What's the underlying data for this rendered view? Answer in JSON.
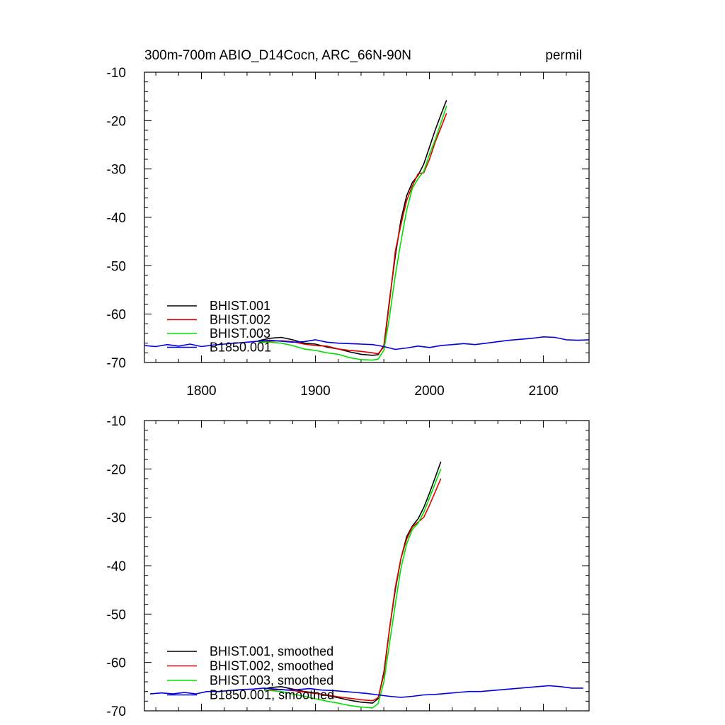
{
  "title_left": "300m-700m ABIO_D14Cocn, ARC_66N-90N",
  "title_right": "permil",
  "colors": {
    "BHIST.001": "#000000",
    "BHIST.002": "#e00000",
    "BHIST.003": "#00e000",
    "B1850.001": "#0000e0"
  },
  "chart_data": [
    {
      "type": "line",
      "xlim": [
        1750,
        2140
      ],
      "ylim": [
        -70,
        -10
      ],
      "x_ticks": [
        1800,
        1900,
        2000,
        2100
      ],
      "x_tick_labels": [
        "1800",
        "1900",
        "2000",
        "2100"
      ],
      "y_ticks": [
        -10,
        -20,
        -30,
        -40,
        -50,
        -60,
        -70
      ],
      "y_tick_labels": [
        "-10",
        "-20",
        "-30",
        "-40",
        "-50",
        "-60",
        "-70"
      ],
      "legend_position": "bottom-left",
      "series": [
        {
          "name": "BHIST.001",
          "x": [
            1850,
            1860,
            1870,
            1880,
            1890,
            1900,
            1910,
            1920,
            1930,
            1940,
            1950,
            1955,
            1960,
            1965,
            1970,
            1975,
            1980,
            1985,
            1990,
            1995,
            2000,
            2005,
            2010,
            2015
          ],
          "y": [
            -65.5,
            -65.0,
            -64.8,
            -65.3,
            -66.0,
            -66.2,
            -66.8,
            -67.2,
            -67.8,
            -68.3,
            -68.5,
            -68.4,
            -66.5,
            -57.0,
            -48.0,
            -40.5,
            -35.5,
            -32.8,
            -31.3,
            -29.0,
            -25.5,
            -22.0,
            -18.8,
            -15.8
          ]
        },
        {
          "name": "BHIST.002",
          "x": [
            1850,
            1860,
            1870,
            1880,
            1890,
            1900,
            1910,
            1920,
            1930,
            1940,
            1950,
            1955,
            1960,
            1965,
            1970,
            1975,
            1980,
            1985,
            1990,
            1995,
            2000,
            2005,
            2010,
            2015
          ],
          "y": [
            -65.8,
            -65.6,
            -65.5,
            -65.7,
            -66.2,
            -66.5,
            -66.6,
            -67.2,
            -67.5,
            -67.7,
            -68.0,
            -68.2,
            -66.8,
            -57.5,
            -47.0,
            -41.5,
            -36.5,
            -33.5,
            -31.0,
            -30.8,
            -28.0,
            -24.5,
            -21.5,
            -18.5
          ]
        },
        {
          "name": "BHIST.003",
          "x": [
            1850,
            1860,
            1870,
            1880,
            1890,
            1900,
            1910,
            1920,
            1930,
            1940,
            1950,
            1955,
            1960,
            1965,
            1970,
            1975,
            1980,
            1985,
            1990,
            1995,
            2000,
            2005,
            2010,
            2015
          ],
          "y": [
            -65.8,
            -65.8,
            -66.0,
            -66.5,
            -67.2,
            -67.5,
            -68.0,
            -68.3,
            -69.0,
            -69.4,
            -69.5,
            -69.3,
            -67.5,
            -60.5,
            -52.0,
            -45.0,
            -38.5,
            -34.0,
            -32.0,
            -30.5,
            -27.0,
            -24.0,
            -20.5,
            -17.0
          ]
        },
        {
          "name": "B1850.001",
          "x": [
            1750,
            1760,
            1770,
            1780,
            1790,
            1800,
            1810,
            1820,
            1830,
            1840,
            1850,
            1860,
            1870,
            1880,
            1890,
            1900,
            1910,
            1920,
            1930,
            1940,
            1950,
            1960,
            1970,
            1980,
            1990,
            2000,
            2010,
            2020,
            2030,
            2040,
            2050,
            2060,
            2070,
            2080,
            2090,
            2100,
            2110,
            2120,
            2130,
            2140
          ],
          "y": [
            -66.5,
            -66.7,
            -66.3,
            -66.6,
            -66.2,
            -66.7,
            -66.4,
            -66.2,
            -66.0,
            -65.8,
            -65.6,
            -65.4,
            -65.6,
            -65.8,
            -65.7,
            -65.3,
            -65.8,
            -66.0,
            -66.1,
            -66.2,
            -66.3,
            -66.7,
            -67.3,
            -67.0,
            -66.6,
            -66.9,
            -66.5,
            -66.3,
            -66.1,
            -66.3,
            -66.0,
            -65.7,
            -65.4,
            -65.2,
            -65.0,
            -64.7,
            -64.8,
            -65.3,
            -65.4,
            -65.3
          ]
        }
      ]
    },
    {
      "type": "line",
      "xlim": [
        1750,
        2140
      ],
      "ylim": [
        -70,
        -10
      ],
      "x_ticks": [
        1800,
        1900,
        2000,
        2100
      ],
      "y_ticks": [
        -10,
        -20,
        -30,
        -40,
        -50,
        -60,
        -70
      ],
      "y_tick_labels": [
        "-10",
        "-20",
        "-30",
        "-40",
        "-50",
        "-60",
        "-70"
      ],
      "legend_position": "bottom-left",
      "series": [
        {
          "name": "BHIST.001, smoothed",
          "x": [
            1855,
            1860,
            1870,
            1880,
            1890,
            1900,
            1910,
            1920,
            1930,
            1940,
            1950,
            1955,
            1960,
            1965,
            1970,
            1975,
            1980,
            1985,
            1990,
            1995,
            2000,
            2005,
            2010
          ],
          "y": [
            -65.5,
            -65.2,
            -65.0,
            -65.5,
            -66.0,
            -66.3,
            -66.8,
            -67.3,
            -67.8,
            -68.2,
            -68.4,
            -67.5,
            -62.0,
            -53.0,
            -45.0,
            -38.5,
            -34.0,
            -31.8,
            -30.3,
            -28.0,
            -25.0,
            -21.8,
            -18.5
          ]
        },
        {
          "name": "BHIST.002, smoothed",
          "x": [
            1855,
            1860,
            1870,
            1880,
            1890,
            1900,
            1910,
            1920,
            1930,
            1940,
            1950,
            1955,
            1960,
            1965,
            1970,
            1975,
            1980,
            1985,
            1990,
            1995,
            2000,
            2005,
            2010
          ],
          "y": [
            -65.8,
            -65.7,
            -65.6,
            -65.8,
            -66.1,
            -66.4,
            -66.7,
            -67.1,
            -67.4,
            -67.7,
            -67.9,
            -67.3,
            -62.5,
            -53.0,
            -44.5,
            -38.5,
            -34.5,
            -32.0,
            -31.0,
            -30.0,
            -27.5,
            -24.8,
            -22.0
          ]
        },
        {
          "name": "BHIST.003, smoothed",
          "x": [
            1855,
            1860,
            1870,
            1880,
            1890,
            1900,
            1910,
            1920,
            1930,
            1940,
            1950,
            1955,
            1960,
            1965,
            1970,
            1975,
            1980,
            1985,
            1990,
            1995,
            2000,
            2005,
            2010
          ],
          "y": [
            -65.8,
            -65.8,
            -66.0,
            -66.5,
            -67.0,
            -67.5,
            -68.0,
            -68.4,
            -68.9,
            -69.2,
            -69.4,
            -68.5,
            -64.0,
            -56.0,
            -48.0,
            -40.5,
            -35.5,
            -32.5,
            -31.2,
            -29.0,
            -26.0,
            -23.0,
            -20.0
          ]
        },
        {
          "name": "B1850.001, smoothed",
          "x": [
            1755,
            1765,
            1775,
            1785,
            1795,
            1805,
            1815,
            1825,
            1835,
            1845,
            1855,
            1865,
            1875,
            1885,
            1895,
            1905,
            1915,
            1925,
            1935,
            1945,
            1955,
            1965,
            1975,
            1985,
            1995,
            2005,
            2015,
            2025,
            2035,
            2045,
            2055,
            2065,
            2075,
            2085,
            2095,
            2105,
            2115,
            2125,
            2135
          ],
          "y": [
            -66.5,
            -66.3,
            -66.5,
            -66.2,
            -66.5,
            -66.0,
            -66.0,
            -65.8,
            -65.6,
            -65.5,
            -65.3,
            -65.5,
            -65.7,
            -65.6,
            -65.4,
            -65.7,
            -65.8,
            -66.0,
            -66.2,
            -66.4,
            -66.7,
            -67.0,
            -67.2,
            -67.0,
            -66.7,
            -66.6,
            -66.4,
            -66.2,
            -66.0,
            -66.0,
            -65.8,
            -65.6,
            -65.4,
            -65.2,
            -65.0,
            -64.8,
            -65.0,
            -65.3,
            -65.3
          ]
        }
      ]
    }
  ]
}
